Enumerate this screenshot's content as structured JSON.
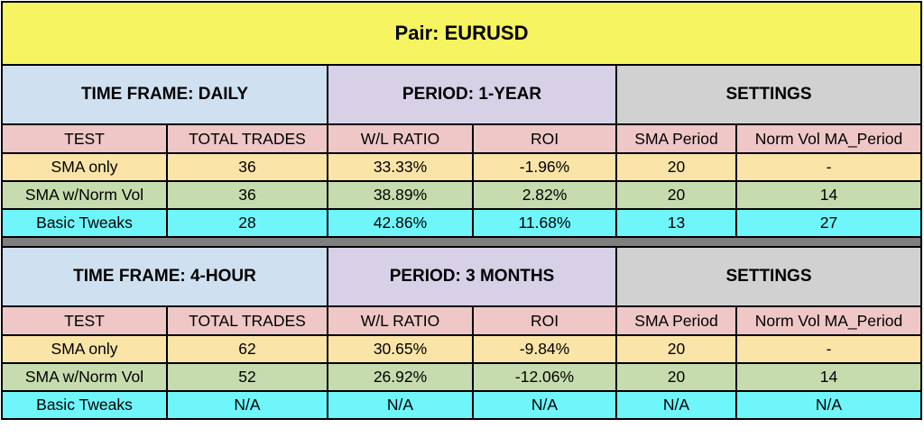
{
  "title": "Pair:  EURUSD",
  "columns": [
    "TEST",
    "TOTAL TRADES",
    "W/L RATIO",
    "ROI",
    "SMA Period",
    "Norm Vol MA_Period"
  ],
  "sections": [
    {
      "timeframe": "TIME FRAME:  DAILY",
      "period": "PERIOD: 1-YEAR",
      "settings": "SETTINGS",
      "rows": [
        {
          "test": "SMA only",
          "total_trades": "36",
          "wl_ratio": "33.33%",
          "roi": "-1.96%",
          "sma_period": "20",
          "norm_vol": "-"
        },
        {
          "test": "SMA w/Norm Vol",
          "total_trades": "36",
          "wl_ratio": "38.89%",
          "roi": "2.82%",
          "sma_period": "20",
          "norm_vol": "14"
        },
        {
          "test": "Basic Tweaks",
          "total_trades": "28",
          "wl_ratio": "42.86%",
          "roi": "11.68%",
          "sma_period": "13",
          "norm_vol": "27"
        }
      ]
    },
    {
      "timeframe": "TIME FRAME:  4-HOUR",
      "period": "PERIOD: 3 MONTHS",
      "settings": "SETTINGS",
      "rows": [
        {
          "test": "SMA only",
          "total_trades": "62",
          "wl_ratio": "30.65%",
          "roi": "-9.84%",
          "sma_period": "20",
          "norm_vol": "-"
        },
        {
          "test": "SMA w/Norm Vol",
          "total_trades": "52",
          "wl_ratio": "26.92%",
          "roi": "-12.06%",
          "sma_period": "20",
          "norm_vol": "14"
        },
        {
          "test": "Basic Tweaks",
          "total_trades": "N/A",
          "wl_ratio": "N/A",
          "roi": "N/A",
          "sma_period": "N/A",
          "norm_vol": "N/A"
        }
      ]
    }
  ]
}
